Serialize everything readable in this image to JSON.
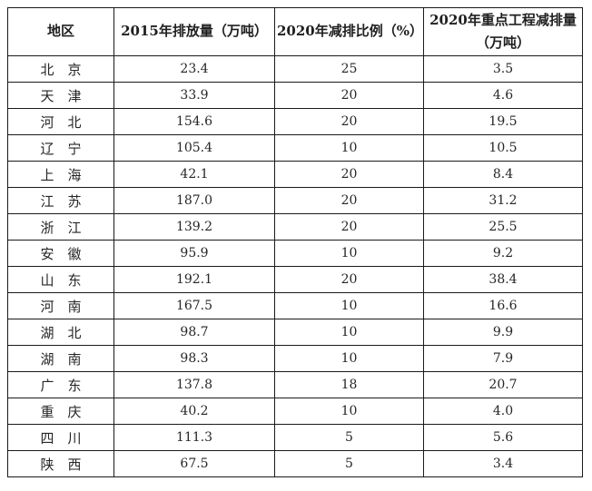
{
  "table": {
    "headers": [
      "地区",
      "2015年排放量（万吨）",
      "2020年减排比例（%）",
      "2020年重点工程减排量\n（万吨）"
    ],
    "rows": [
      [
        "北　京",
        "23.4",
        "25",
        "3.5"
      ],
      [
        "天　津",
        "33.9",
        "20",
        "4.6"
      ],
      [
        "河　北",
        "154.6",
        "20",
        "19.5"
      ],
      [
        "辽　宁",
        "105.4",
        "10",
        "10.5"
      ],
      [
        "上　海",
        "42.1",
        "20",
        "8.4"
      ],
      [
        "江　苏",
        "187.0",
        "20",
        "31.2"
      ],
      [
        "浙　江",
        "139.2",
        "20",
        "25.5"
      ],
      [
        "安　徽",
        "95.9",
        "10",
        "9.2"
      ],
      [
        "山　东",
        "192.1",
        "20",
        "38.4"
      ],
      [
        "河　南",
        "167.5",
        "10",
        "16.6"
      ],
      [
        "湖　北",
        "98.7",
        "10",
        "9.9"
      ],
      [
        "湖　南",
        "98.3",
        "10",
        "7.9"
      ],
      [
        "广　东",
        "137.8",
        "18",
        "20.7"
      ],
      [
        "重　庆",
        "40.2",
        "10",
        "4.0"
      ],
      [
        "四　川",
        "111.3",
        "5",
        "5.6"
      ],
      [
        "陕　西",
        "67.5",
        "5",
        "3.4"
      ]
    ]
  },
  "colors": {
    "border": "#1a1a1a",
    "text": "#262626",
    "background": "#ffffff"
  }
}
